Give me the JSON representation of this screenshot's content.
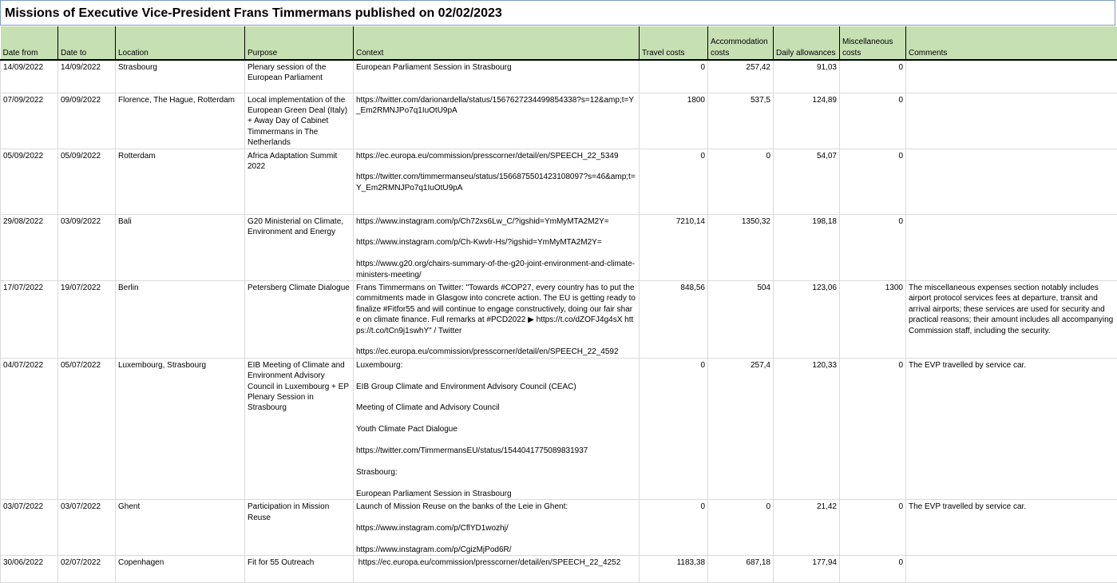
{
  "title": "Missions of Executive Vice-President Frans Timmermans published on 02/02/2023",
  "columns": [
    "Date from",
    "Date to",
    "Location",
    "Purpose",
    "Context",
    "Travel costs",
    "Accommodation costs",
    "Daily allowances",
    "Miscellaneous costs",
    "Comments"
  ],
  "rows": [
    {
      "date_from": "14/09/2022",
      "date_to": "14/09/2022",
      "location": "Strasbourg",
      "purpose": "Plenary session of the European Parliament",
      "context": "European Parliament Session in Strasbourg",
      "travel": "0",
      "accommodation": "257,42",
      "daily": "91,03",
      "misc": "0",
      "comments": ""
    },
    {
      "date_from": "07/09/2022",
      "date_to": "09/09/2022",
      "location": "Florence, The Hague, Rotterdam",
      "purpose": "Local implementation of the European Green Deal (Italy) + Away Day of Cabinet Timmermans in The Netherlands",
      "context": "https://twitter.com/darionardella/status/1567627234499854338?s=12&amp;t=Y_Em2RMNJPo7q1IuOtU9pA",
      "travel": "1800",
      "accommodation": "537,5",
      "daily": "124,89",
      "misc": "0",
      "comments": ""
    },
    {
      "date_from": "05/09/2022",
      "date_to": "05/09/2022",
      "location": "Rotterdam",
      "purpose": "Africa Adaptation Summit 2022",
      "context": "https://ec.europa.eu/commission/presscorner/detail/en/SPEECH_22_5349\n\nhttps://twitter.com/timmermanseu/status/1566875501423108097?s=46&amp;t=Y_Em2RMNJPo7q1IuOtU9pA",
      "travel": "0",
      "accommodation": "0",
      "daily": "54,07",
      "misc": "0",
      "comments": ""
    },
    {
      "date_from": "29/08/2022",
      "date_to": "03/09/2022",
      "location": "Bali",
      "purpose": "G20 Ministerial on Climate, Environment and Energy",
      "context": "https://www.instagram.com/p/Ch72xs6Lw_C/?igshid=YmMyMTA2M2Y=\n\nhttps://www.instagram.com/p/Ch-Kwvlr-Hs/?igshid=YmMyMTA2M2Y=\n\nhttps://www.g20.org/chairs-summary-of-the-g20-joint-environment-and-climate-ministers-meeting/",
      "travel": "7210,14",
      "accommodation": "1350,32",
      "daily": "198,18",
      "misc": "0",
      "comments": ""
    },
    {
      "date_from": "17/07/2022",
      "date_to": "19/07/2022",
      "location": "Berlin",
      "purpose": "Petersberg Climate Dialogue",
      "context": "Frans Timmermans on Twitter: \"Towards #COP27, every country has to put the commitments made in Glasgow into concrete action. The EU is getting ready to finalize #Fitfor55 and will continue to engage constructively, doing our fair share on climate finance. Full remarks at #PCD2022 ▶ https://t.co/dZOFJ4g4sX https://t.co/tCn9j1swhY\" / Twitter\n\nhttps://ec.europa.eu/commission/presscorner/detail/en/SPEECH_22_4592",
      "travel": "848,56",
      "accommodation": "504",
      "daily": "123,06",
      "misc": "1300",
      "comments": "The miscellaneous expenses section notably includes airport protocol services fees at departure, transit and arrival airports; these services are used for security and practical reasons; their amount includes all accompanying Commission staff, including the security."
    },
    {
      "date_from": "04/07/2022",
      "date_to": "05/07/2022",
      "location": "Luxembourg, Strasbourg",
      "purpose": "EIB Meeting of Climate and Environment Advisory Council in Luxembourg + EP Plenary Session in Strasbourg",
      "context": "Luxembourg:\n\nEIB Group Climate and Environment Advisory Council (CEAC)\n\nMeeting of Climate and Advisory Council\n\nYouth Climate Pact Dialogue\n\nhttps://twitter.com/TimmermansEU/status/1544041775089831937\n\nStrasbourg:\n\nEuropean Parliament Session in Strasbourg",
      "travel": "0",
      "accommodation": "257,4",
      "daily": "120,33",
      "misc": "0",
      "comments": "The EVP travelled by service car."
    },
    {
      "date_from": "03/07/2022",
      "date_to": "03/07/2022",
      "location": "Ghent",
      "purpose": "Participation in Mission Reuse",
      "context": "Launch of Mission Reuse on the banks of the Leie in Ghent:\n\nhttps://www.instagram.com/p/CflYD1wozhj/\n\nhttps://www.instagram.com/p/CgizMjPod6R/",
      "travel": "0",
      "accommodation": "0",
      "daily": "21,42",
      "misc": "0",
      "comments": "The EVP travelled by service car."
    },
    {
      "date_from": "30/06/2022",
      "date_to": "02/07/2022",
      "location": "Copenhagen",
      "purpose": "Fit for 55 Outreach",
      "context": " https://ec.europa.eu/commission/presscorner/detail/en/SPEECH_22_4252",
      "travel": "1183,38",
      "accommodation": "687,18",
      "daily": "177,94",
      "misc": "0",
      "comments": ""
    }
  ]
}
